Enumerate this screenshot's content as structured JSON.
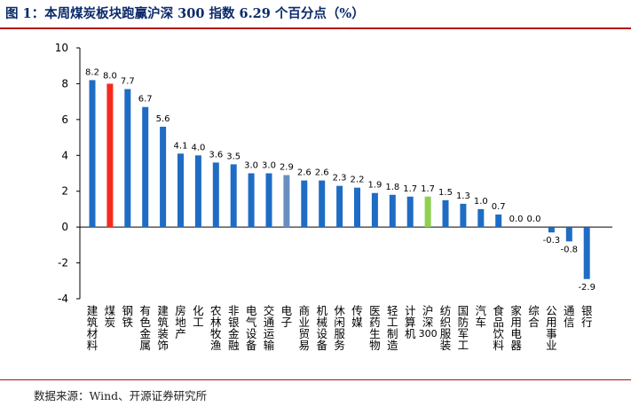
{
  "header": {
    "title": "图 1：本周煤炭板块跑赢沪深 300 指数 6.29 个百分点（%）"
  },
  "footer": {
    "source": "数据来源：Wind、开源证券研究所"
  },
  "colors": {
    "default_bar": "#1f6cc4",
    "coal_bar": "#f52a1e",
    "index_bar": "#8fd14f",
    "electronics_bar": "#6a8fbf",
    "rule": "#b40f12"
  },
  "chart_data": {
    "type": "bar",
    "title": "",
    "xlabel": "",
    "ylabel": "",
    "ylim": [
      -4,
      10
    ],
    "yticks": [
      -4,
      -2,
      0,
      2,
      4,
      6,
      8,
      10
    ],
    "grid": false,
    "categories": [
      "建筑材料",
      "煤炭",
      "钢铁",
      "有色金属",
      "建筑装饰",
      "房地产",
      "化工",
      "农林牧渔",
      "非银金融",
      "电气设备",
      "交通运输",
      "电子",
      "商业贸易",
      "机械设备",
      "休闲服务",
      "传媒",
      "医药生物",
      "轻工制造",
      "计算机",
      "沪深300",
      "纺织服装",
      "国防军工",
      "汽车",
      "食品饮料",
      "家用电器",
      "综合",
      "公用事业",
      "通信",
      "银行"
    ],
    "values": [
      8.2,
      8.0,
      7.7,
      6.7,
      5.6,
      4.1,
      4.0,
      3.6,
      3.5,
      3.0,
      3.0,
      2.9,
      2.6,
      2.6,
      2.3,
      2.2,
      1.9,
      1.8,
      1.7,
      1.7,
      1.5,
      1.3,
      1.0,
      0.7,
      0.0,
      0.0,
      -0.3,
      -0.8,
      -2.9
    ],
    "labels": [
      "8.2",
      "8.0",
      "7.7",
      "6.7",
      "5.6",
      "4.1",
      "4.0",
      "3.6",
      "3.5",
      "3.0",
      "3.0",
      "2.9",
      "2.6",
      "2.6",
      "2.3",
      "2.2",
      "1.9",
      "1.8",
      "1.7",
      "1.7",
      "1.5",
      "1.3",
      "1.0",
      "0.7",
      "0.0",
      "0.0",
      "-0.3",
      "-0.8",
      "-2.9"
    ],
    "highlight": {
      "煤炭": "coal_bar",
      "沪深300": "index_bar",
      "电子": "electronics_bar"
    }
  }
}
